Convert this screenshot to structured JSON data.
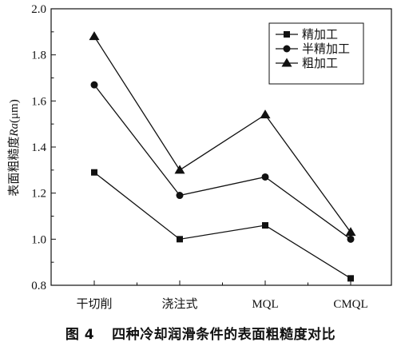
{
  "figure": {
    "number": "图 4",
    "caption": "四种冷却润滑条件的表面粗糙度对比"
  },
  "chart_data": {
    "type": "line",
    "categories": [
      "干切削",
      "浇注式",
      "MQL",
      "CMQL"
    ],
    "ylabel_prefix": "表面粗糙度",
    "ylabel_italic": "Ra",
    "ylabel_unit": "(μm)",
    "xlabel": "",
    "ylim": [
      0.8,
      2.0
    ],
    "yticks": [
      "0.8",
      "1.0",
      "1.2",
      "1.4",
      "1.6",
      "1.8",
      "2.0"
    ],
    "grid": false,
    "legend_position": "top-right",
    "series": [
      {
        "name": "精加工",
        "marker": "square",
        "values": [
          1.29,
          1.0,
          1.06,
          0.83
        ]
      },
      {
        "name": "半精加工",
        "marker": "circle",
        "values": [
          1.67,
          1.19,
          1.27,
          1.0
        ]
      },
      {
        "name": "粗加工",
        "marker": "triangle",
        "values": [
          1.88,
          1.3,
          1.54,
          1.03
        ]
      }
    ]
  }
}
